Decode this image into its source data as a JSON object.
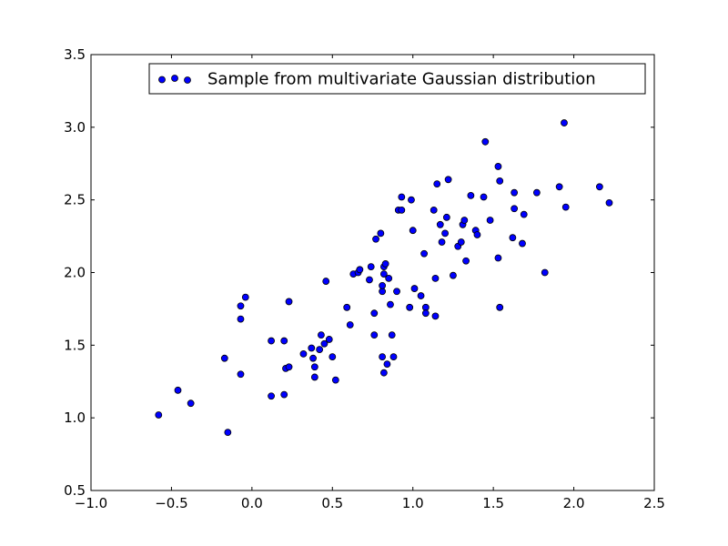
{
  "chart_data": {
    "type": "scatter",
    "title": "",
    "xlabel": "",
    "ylabel": "",
    "xlim": [
      -1.0,
      2.5
    ],
    "ylim": [
      0.5,
      3.5
    ],
    "x_ticks": [
      -1.0,
      -0.5,
      0.0,
      0.5,
      1.0,
      1.5,
      2.0,
      2.5
    ],
    "y_ticks": [
      0.5,
      1.0,
      1.5,
      2.0,
      2.5,
      3.0,
      3.5
    ],
    "x_tick_labels": [
      "−1.0",
      "−0.5",
      "0.0",
      "0.5",
      "1.0",
      "1.5",
      "2.0",
      "2.5"
    ],
    "y_tick_labels": [
      "0.5",
      "1.0",
      "1.5",
      "2.0",
      "2.5",
      "3.0",
      "3.5"
    ],
    "grid": false,
    "legend": {
      "position": "top-right",
      "entries": [
        "Sample from multivariate Gaussian distribution"
      ]
    },
    "marker_color": "#0000ff",
    "marker_edge_color": "#000000",
    "series": [
      {
        "name": "Sample from multivariate Gaussian distribution",
        "points": [
          [
            -0.58,
            1.02
          ],
          [
            -0.46,
            1.19
          ],
          [
            -0.38,
            1.1
          ],
          [
            -0.15,
            0.9
          ],
          [
            -0.17,
            1.41
          ],
          [
            -0.07,
            1.3
          ],
          [
            -0.07,
            1.68
          ],
          [
            -0.07,
            1.77
          ],
          [
            -0.04,
            1.83
          ],
          [
            0.12,
            1.15
          ],
          [
            0.12,
            1.53
          ],
          [
            0.2,
            1.16
          ],
          [
            0.2,
            1.53
          ],
          [
            0.21,
            1.34
          ],
          [
            0.23,
            1.35
          ],
          [
            0.23,
            1.8
          ],
          [
            0.32,
            1.44
          ],
          [
            0.37,
            1.48
          ],
          [
            0.38,
            1.41
          ],
          [
            0.39,
            1.35
          ],
          [
            0.39,
            1.28
          ],
          [
            0.42,
            1.47
          ],
          [
            0.43,
            1.57
          ],
          [
            0.45,
            1.51
          ],
          [
            0.46,
            1.94
          ],
          [
            0.48,
            1.54
          ],
          [
            0.5,
            1.42
          ],
          [
            0.52,
            1.26
          ],
          [
            0.59,
            1.76
          ],
          [
            0.61,
            1.64
          ],
          [
            0.63,
            1.99
          ],
          [
            0.66,
            2.0
          ],
          [
            0.67,
            2.02
          ],
          [
            0.73,
            1.95
          ],
          [
            0.74,
            2.04
          ],
          [
            0.76,
            1.57
          ],
          [
            0.76,
            1.72
          ],
          [
            0.77,
            2.23
          ],
          [
            0.8,
            2.27
          ],
          [
            0.81,
            1.42
          ],
          [
            0.81,
            1.87
          ],
          [
            0.81,
            1.91
          ],
          [
            0.82,
            1.99
          ],
          [
            0.82,
            2.04
          ],
          [
            0.83,
            2.06
          ],
          [
            0.82,
            1.31
          ],
          [
            0.84,
            1.37
          ],
          [
            0.85,
            1.96
          ],
          [
            0.86,
            1.78
          ],
          [
            0.87,
            1.57
          ],
          [
            0.88,
            1.42
          ],
          [
            0.9,
            1.87
          ],
          [
            0.91,
            2.43
          ],
          [
            0.93,
            2.43
          ],
          [
            0.93,
            2.52
          ],
          [
            0.98,
            1.76
          ],
          [
            0.99,
            2.5
          ],
          [
            1.0,
            2.29
          ],
          [
            1.01,
            1.89
          ],
          [
            1.05,
            1.84
          ],
          [
            1.07,
            2.13
          ],
          [
            1.08,
            1.76
          ],
          [
            1.08,
            1.72
          ],
          [
            1.13,
            2.43
          ],
          [
            1.14,
            1.7
          ],
          [
            1.14,
            1.96
          ],
          [
            1.15,
            2.61
          ],
          [
            1.17,
            2.33
          ],
          [
            1.18,
            2.21
          ],
          [
            1.2,
            2.27
          ],
          [
            1.21,
            2.38
          ],
          [
            1.22,
            2.64
          ],
          [
            1.25,
            1.98
          ],
          [
            1.28,
            2.18
          ],
          [
            1.3,
            2.21
          ],
          [
            1.31,
            2.33
          ],
          [
            1.32,
            2.36
          ],
          [
            1.33,
            2.08
          ],
          [
            1.36,
            2.53
          ],
          [
            1.39,
            2.29
          ],
          [
            1.4,
            2.26
          ],
          [
            1.44,
            2.52
          ],
          [
            1.45,
            2.9
          ],
          [
            1.48,
            2.36
          ],
          [
            1.53,
            2.1
          ],
          [
            1.53,
            2.73
          ],
          [
            1.54,
            2.63
          ],
          [
            1.54,
            1.76
          ],
          [
            1.62,
            2.24
          ],
          [
            1.63,
            2.44
          ],
          [
            1.63,
            2.55
          ],
          [
            1.68,
            2.2
          ],
          [
            1.69,
            2.4
          ],
          [
            1.77,
            2.55
          ],
          [
            1.82,
            2.0
          ],
          [
            1.91,
            2.59
          ],
          [
            1.94,
            3.03
          ],
          [
            1.95,
            2.45
          ],
          [
            2.16,
            2.59
          ],
          [
            2.22,
            2.48
          ]
        ]
      }
    ]
  }
}
